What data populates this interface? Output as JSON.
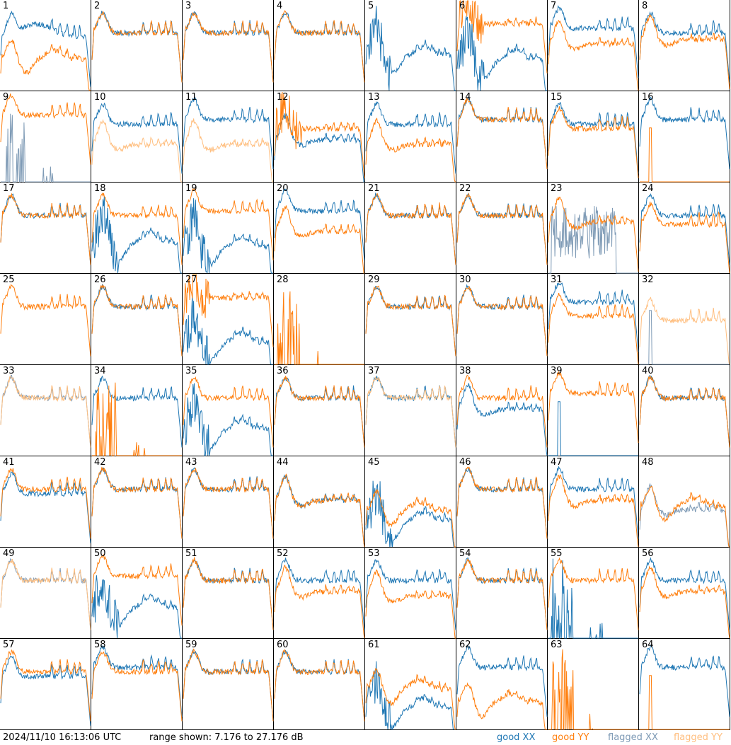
{
  "footer": {
    "timestamp": "2024/11/10 16:13:06 UTC",
    "range_text": "range shown: 7.176 to 27.176 dB"
  },
  "legend": {
    "good_xx": "good XX",
    "good_yy": "good YY",
    "flagged_xx": "flagged XX",
    "flagged_yy": "flagged YY"
  },
  "colors": {
    "good_xx": "#1f77b4",
    "good_yy": "#ff7f0e",
    "flagged_xx": "#7f9bb6",
    "flagged_yy": "#ffbf80"
  },
  "chart_data": {
    "type": "line",
    "units": "dB",
    "ylim": [
      7.176,
      27.176
    ],
    "grid": false,
    "legend_placement": "bottom-right",
    "panels": [
      {
        "id": "1",
        "xx": {
          "status": "good",
          "shape": "tilt",
          "level": 21
        },
        "yy": {
          "status": "good",
          "shape": "dip",
          "level": 17
        }
      },
      {
        "id": "2",
        "xx": {
          "status": "good",
          "shape": "normal",
          "level": 20
        },
        "yy": {
          "status": "good",
          "shape": "normal",
          "level": 20
        }
      },
      {
        "id": "3",
        "xx": {
          "status": "good",
          "shape": "normal",
          "level": 20
        },
        "yy": {
          "status": "good",
          "shape": "normal",
          "level": 20
        }
      },
      {
        "id": "4",
        "xx": {
          "status": "good",
          "shape": "normal",
          "level": 20
        },
        "yy": {
          "status": "good",
          "shape": "normal",
          "level": 20
        }
      },
      {
        "id": "5",
        "xx": {
          "status": "good",
          "shape": "deep",
          "level": 19
        },
        "yy": {
          "status": "good",
          "shape": "none",
          "level": 0
        }
      },
      {
        "id": "6",
        "xx": {
          "status": "good",
          "shape": "deep",
          "level": 18
        },
        "yy": {
          "status": "good",
          "shape": "spiky",
          "level": 22
        }
      },
      {
        "id": "7",
        "xx": {
          "status": "good",
          "shape": "normal",
          "level": 21
        },
        "yy": {
          "status": "good",
          "shape": "flat",
          "level": 19
        }
      },
      {
        "id": "8",
        "xx": {
          "status": "good",
          "shape": "normal",
          "level": 20
        },
        "yy": {
          "status": "good",
          "shape": "flat",
          "level": 20
        }
      },
      {
        "id": "9",
        "xx": {
          "status": "flagged",
          "shape": "spikes",
          "level": 12
        },
        "yy": {
          "status": "good",
          "shape": "normal",
          "level": 22
        }
      },
      {
        "id": "10",
        "xx": {
          "status": "good",
          "shape": "normal",
          "level": 20
        },
        "yy": {
          "status": "flagged",
          "shape": "flat",
          "level": 17
        }
      },
      {
        "id": "11",
        "xx": {
          "status": "good",
          "shape": "normal",
          "level": 21
        },
        "yy": {
          "status": "flagged",
          "shape": "flat",
          "level": 17
        }
      },
      {
        "id": "12",
        "xx": {
          "status": "good",
          "shape": "flat",
          "level": 18
        },
        "yy": {
          "status": "good",
          "shape": "spiky",
          "level": 19
        }
      },
      {
        "id": "13",
        "xx": {
          "status": "good",
          "shape": "normal",
          "level": 20
        },
        "yy": {
          "status": "good",
          "shape": "flat",
          "level": 17
        }
      },
      {
        "id": "14",
        "xx": {
          "status": "good",
          "shape": "normal",
          "level": 21
        },
        "yy": {
          "status": "good",
          "shape": "normal",
          "level": 21
        }
      },
      {
        "id": "15",
        "xx": {
          "status": "good",
          "shape": "normal",
          "level": 20
        },
        "yy": {
          "status": "good",
          "shape": "normal",
          "level": 19
        }
      },
      {
        "id": "16",
        "xx": {
          "status": "good",
          "shape": "normal",
          "level": 21
        },
        "yy": {
          "status": "good",
          "shape": "spike",
          "level": 12
        }
      },
      {
        "id": "17",
        "xx": {
          "status": "good",
          "shape": "normal",
          "level": 20
        },
        "yy": {
          "status": "good",
          "shape": "normal",
          "level": 20
        }
      },
      {
        "id": "18",
        "xx": {
          "status": "good",
          "shape": "deep",
          "level": 18
        },
        "yy": {
          "status": "good",
          "shape": "normal",
          "level": 20
        }
      },
      {
        "id": "19",
        "xx": {
          "status": "good",
          "shape": "deep",
          "level": 17
        },
        "yy": {
          "status": "good",
          "shape": "normal",
          "level": 21
        }
      },
      {
        "id": "20",
        "xx": {
          "status": "good",
          "shape": "normal",
          "level": 21
        },
        "yy": {
          "status": "good",
          "shape": "flat",
          "level": 18
        }
      },
      {
        "id": "21",
        "xx": {
          "status": "good",
          "shape": "normal",
          "level": 20
        },
        "yy": {
          "status": "good",
          "shape": "normal",
          "level": 20
        }
      },
      {
        "id": "22",
        "xx": {
          "status": "good",
          "shape": "normal",
          "level": 20
        },
        "yy": {
          "status": "good",
          "shape": "normal",
          "level": 20
        }
      },
      {
        "id": "23",
        "xx": {
          "status": "flagged",
          "shape": "noise",
          "level": 15
        },
        "yy": {
          "status": "good",
          "shape": "flat",
          "level": 20
        }
      },
      {
        "id": "24",
        "xx": {
          "status": "good",
          "shape": "normal",
          "level": 20
        },
        "yy": {
          "status": "good",
          "shape": "normal",
          "level": 18
        }
      },
      {
        "id": "25",
        "xx": {
          "status": "good",
          "shape": "none",
          "level": 0
        },
        "yy": {
          "status": "good",
          "shape": "normal",
          "level": 20
        }
      },
      {
        "id": "26",
        "xx": {
          "status": "good",
          "shape": "normal",
          "level": 20
        },
        "yy": {
          "status": "good",
          "shape": "normal",
          "level": 20
        }
      },
      {
        "id": "27",
        "xx": {
          "status": "good",
          "shape": "deep",
          "level": 16
        },
        "yy": {
          "status": "good",
          "shape": "spiky",
          "level": 22
        }
      },
      {
        "id": "28",
        "xx": {
          "status": "good",
          "shape": "none",
          "level": 0
        },
        "yy": {
          "status": "good",
          "shape": "spikes",
          "level": 12
        }
      },
      {
        "id": "29",
        "xx": {
          "status": "good",
          "shape": "normal",
          "level": 20
        },
        "yy": {
          "status": "good",
          "shape": "normal",
          "level": 20
        }
      },
      {
        "id": "30",
        "xx": {
          "status": "good",
          "shape": "normal",
          "level": 20
        },
        "yy": {
          "status": "good",
          "shape": "normal",
          "level": 20
        }
      },
      {
        "id": "31",
        "xx": {
          "status": "good",
          "shape": "normal",
          "level": 21
        },
        "yy": {
          "status": "good",
          "shape": "normal",
          "level": 18
        }
      },
      {
        "id": "32",
        "xx": {
          "status": "flagged",
          "shape": "spike",
          "level": 12
        },
        "yy": {
          "status": "flagged",
          "shape": "normal",
          "level": 17
        }
      },
      {
        "id": "33",
        "xx": {
          "status": "flagged",
          "shape": "normal",
          "level": 20
        },
        "yy": {
          "status": "flagged",
          "shape": "normal",
          "level": 20
        }
      },
      {
        "id": "34",
        "xx": {
          "status": "good",
          "shape": "normal",
          "level": 20
        },
        "yy": {
          "status": "good",
          "shape": "spikes",
          "level": 12
        }
      },
      {
        "id": "35",
        "xx": {
          "status": "good",
          "shape": "deep",
          "level": 17
        },
        "yy": {
          "status": "good",
          "shape": "normal",
          "level": 20
        }
      },
      {
        "id": "36",
        "xx": {
          "status": "good",
          "shape": "normal",
          "level": 20
        },
        "yy": {
          "status": "good",
          "shape": "normal",
          "level": 20
        }
      },
      {
        "id": "37",
        "xx": {
          "status": "good",
          "shape": "normal",
          "level": 20
        },
        "yy": {
          "status": "flagged",
          "shape": "normal",
          "level": 20
        }
      },
      {
        "id": "38",
        "xx": {
          "status": "good",
          "shape": "flat",
          "level": 19
        },
        "yy": {
          "status": "good",
          "shape": "normal",
          "level": 20
        }
      },
      {
        "id": "39",
        "xx": {
          "status": "good",
          "shape": "spike",
          "level": 12
        },
        "yy": {
          "status": "good",
          "shape": "normal",
          "level": 21
        }
      },
      {
        "id": "40",
        "xx": {
          "status": "good",
          "shape": "normal",
          "level": 20
        },
        "yy": {
          "status": "good",
          "shape": "normal",
          "level": 20
        }
      },
      {
        "id": "41",
        "xx": {
          "status": "good",
          "shape": "normal",
          "level": 19
        },
        "yy": {
          "status": "good",
          "shape": "normal",
          "level": 20
        }
      },
      {
        "id": "42",
        "xx": {
          "status": "good",
          "shape": "normal",
          "level": 20
        },
        "yy": {
          "status": "good",
          "shape": "normal",
          "level": 20
        }
      },
      {
        "id": "43",
        "xx": {
          "status": "good",
          "shape": "normal",
          "level": 20
        },
        "yy": {
          "status": "good",
          "shape": "normal",
          "level": 20
        }
      },
      {
        "id": "44",
        "xx": {
          "status": "good",
          "shape": "flat",
          "level": 19
        },
        "yy": {
          "status": "good",
          "shape": "flat",
          "level": 19
        }
      },
      {
        "id": "45",
        "xx": {
          "status": "good",
          "shape": "deep",
          "level": 17
        },
        "yy": {
          "status": "good",
          "shape": "dip",
          "level": 18
        }
      },
      {
        "id": "46",
        "xx": {
          "status": "good",
          "shape": "normal",
          "level": 20
        },
        "yy": {
          "status": "good",
          "shape": "normal",
          "level": 20
        }
      },
      {
        "id": "47",
        "xx": {
          "status": "good",
          "shape": "normal",
          "level": 20
        },
        "yy": {
          "status": "good",
          "shape": "flat",
          "level": 19
        }
      },
      {
        "id": "48",
        "xx": {
          "status": "flagged",
          "shape": "flat",
          "level": 17
        },
        "yy": {
          "status": "good",
          "shape": "dip",
          "level": 19
        }
      },
      {
        "id": "49",
        "xx": {
          "status": "flagged",
          "shape": "normal",
          "level": 20
        },
        "yy": {
          "status": "flagged",
          "shape": "normal",
          "level": 20
        }
      },
      {
        "id": "50",
        "xx": {
          "status": "good",
          "shape": "deep",
          "level": 18
        },
        "yy": {
          "status": "good",
          "shape": "normal",
          "level": 21
        }
      },
      {
        "id": "51",
        "xx": {
          "status": "good",
          "shape": "normal",
          "level": 20
        },
        "yy": {
          "status": "good",
          "shape": "normal",
          "level": 20
        }
      },
      {
        "id": "52",
        "xx": {
          "status": "good",
          "shape": "normal",
          "level": 20
        },
        "yy": {
          "status": "good",
          "shape": "flat",
          "level": 19
        }
      },
      {
        "id": "53",
        "xx": {
          "status": "good",
          "shape": "normal",
          "level": 20
        },
        "yy": {
          "status": "good",
          "shape": "flat",
          "level": 18
        }
      },
      {
        "id": "54",
        "xx": {
          "status": "good",
          "shape": "normal",
          "level": 20
        },
        "yy": {
          "status": "good",
          "shape": "normal",
          "level": 20
        }
      },
      {
        "id": "55",
        "xx": {
          "status": "good",
          "shape": "spikes",
          "level": 12
        },
        "yy": {
          "status": "good",
          "shape": "normal",
          "level": 20
        }
      },
      {
        "id": "56",
        "xx": {
          "status": "good",
          "shape": "normal",
          "level": 20
        },
        "yy": {
          "status": "good",
          "shape": "flat",
          "level": 19
        }
      },
      {
        "id": "57",
        "xx": {
          "status": "good",
          "shape": "normal",
          "level": 19
        },
        "yy": {
          "status": "good",
          "shape": "normal",
          "level": 20
        }
      },
      {
        "id": "58",
        "xx": {
          "status": "good",
          "shape": "normal",
          "level": 21
        },
        "yy": {
          "status": "good",
          "shape": "normal",
          "level": 20
        }
      },
      {
        "id": "59",
        "xx": {
          "status": "good",
          "shape": "normal",
          "level": 20
        },
        "yy": {
          "status": "good",
          "shape": "normal",
          "level": 20
        }
      },
      {
        "id": "60",
        "xx": {
          "status": "good",
          "shape": "normal",
          "level": 20
        },
        "yy": {
          "status": "good",
          "shape": "normal",
          "level": 20
        }
      },
      {
        "id": "61",
        "xx": {
          "status": "good",
          "shape": "deep",
          "level": 16
        },
        "yy": {
          "status": "good",
          "shape": "dip",
          "level": 19
        }
      },
      {
        "id": "62",
        "xx": {
          "status": "good",
          "shape": "normal",
          "level": 21
        },
        "yy": {
          "status": "good",
          "shape": "dip",
          "level": 16
        }
      },
      {
        "id": "63",
        "xx": {
          "status": "good",
          "shape": "none",
          "level": 0
        },
        "yy": {
          "status": "good",
          "shape": "spikes",
          "level": 12
        }
      },
      {
        "id": "64",
        "xx": {
          "status": "good",
          "shape": "normal",
          "level": 21
        },
        "yy": {
          "status": "good",
          "shape": "spike",
          "level": 12
        }
      }
    ]
  }
}
